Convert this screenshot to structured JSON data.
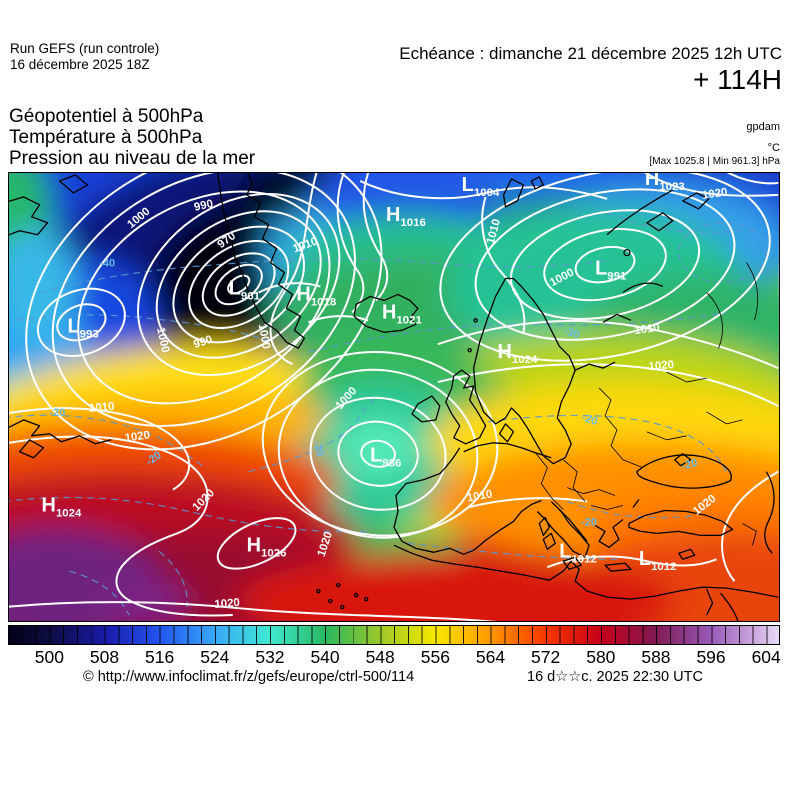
{
  "header": {
    "run_line1": "Run GEFS (run controle)",
    "run_line2": "16 décembre 2025 18Z",
    "validity": "Echéance : dimanche 21 décembre 2025 12h UTC",
    "forecast_hour": "+ 114H",
    "param1": "Géopotentiel à 500hPa",
    "param2": "Température à 500hPa",
    "param3": "Pression au niveau de la mer",
    "unit_geopotential": "gpdam",
    "unit_temperature": "°C",
    "pressure_extremes": "[Max 1025.8 | Min 961.3] hPa"
  },
  "map": {
    "pressure_centers": [
      {
        "letter": "L",
        "value": "993"
      },
      {
        "letter": "L",
        "value": "961"
      },
      {
        "letter": "H",
        "value": "1018"
      },
      {
        "letter": "H",
        "value": "1016"
      },
      {
        "letter": "L",
        "value": "1004"
      },
      {
        "letter": "H",
        "value": "1023"
      },
      {
        "letter": "H",
        "value": "1021"
      },
      {
        "letter": "L",
        "value": "991"
      },
      {
        "letter": "H",
        "value": "1024"
      },
      {
        "letter": "L",
        "value": "986"
      },
      {
        "letter": "H",
        "value": "1024"
      },
      {
        "letter": "H",
        "value": "1026"
      },
      {
        "letter": "L",
        "value": "1012"
      },
      {
        "letter": "L",
        "value": "1012"
      }
    ],
    "isobar_labels": [
      "990",
      "1000",
      "970",
      "1000",
      "990",
      "1010",
      "1010",
      "1000",
      "1010",
      "1020",
      "1020",
      "1010",
      "1020",
      "1000",
      "1000",
      "1020",
      "1020",
      "1020",
      "1010",
      "1020"
    ],
    "temperature_labels": [
      "-40",
      "-30",
      "-20",
      "-20",
      "-20",
      "-20",
      "-20",
      "-20"
    ]
  },
  "colorbar": {
    "ticks": [
      "500",
      "508",
      "516",
      "524",
      "532",
      "540",
      "548",
      "556",
      "564",
      "572",
      "580",
      "588",
      "596",
      "604"
    ],
    "gradient_stops": [
      {
        "value": 500,
        "color": "#0d0d42"
      },
      {
        "value": 508,
        "color": "#1a1aaa"
      },
      {
        "value": 516,
        "color": "#2256f0"
      },
      {
        "value": 524,
        "color": "#38a8f8"
      },
      {
        "value": 532,
        "color": "#40e8d0"
      },
      {
        "value": 540,
        "color": "#28b860"
      },
      {
        "value": 548,
        "color": "#9cc828"
      },
      {
        "value": 556,
        "color": "#f8e800"
      },
      {
        "value": 564,
        "color": "#ff9800"
      },
      {
        "value": 572,
        "color": "#f83800"
      },
      {
        "value": 580,
        "color": "#c80018"
      },
      {
        "value": 588,
        "color": "#801850"
      },
      {
        "value": 596,
        "color": "#9858b8"
      },
      {
        "value": 604,
        "color": "#d8bce8"
      }
    ],
    "end_colors": {
      "left": "#02021a",
      "right": "#e8dcf4"
    }
  },
  "footer": {
    "copyright": "© http://www.infoclimat.fr/z/gefs/europe/ctrl-500/114",
    "datetime": "16 d☆☆c. 2025 22:30 UTC"
  }
}
